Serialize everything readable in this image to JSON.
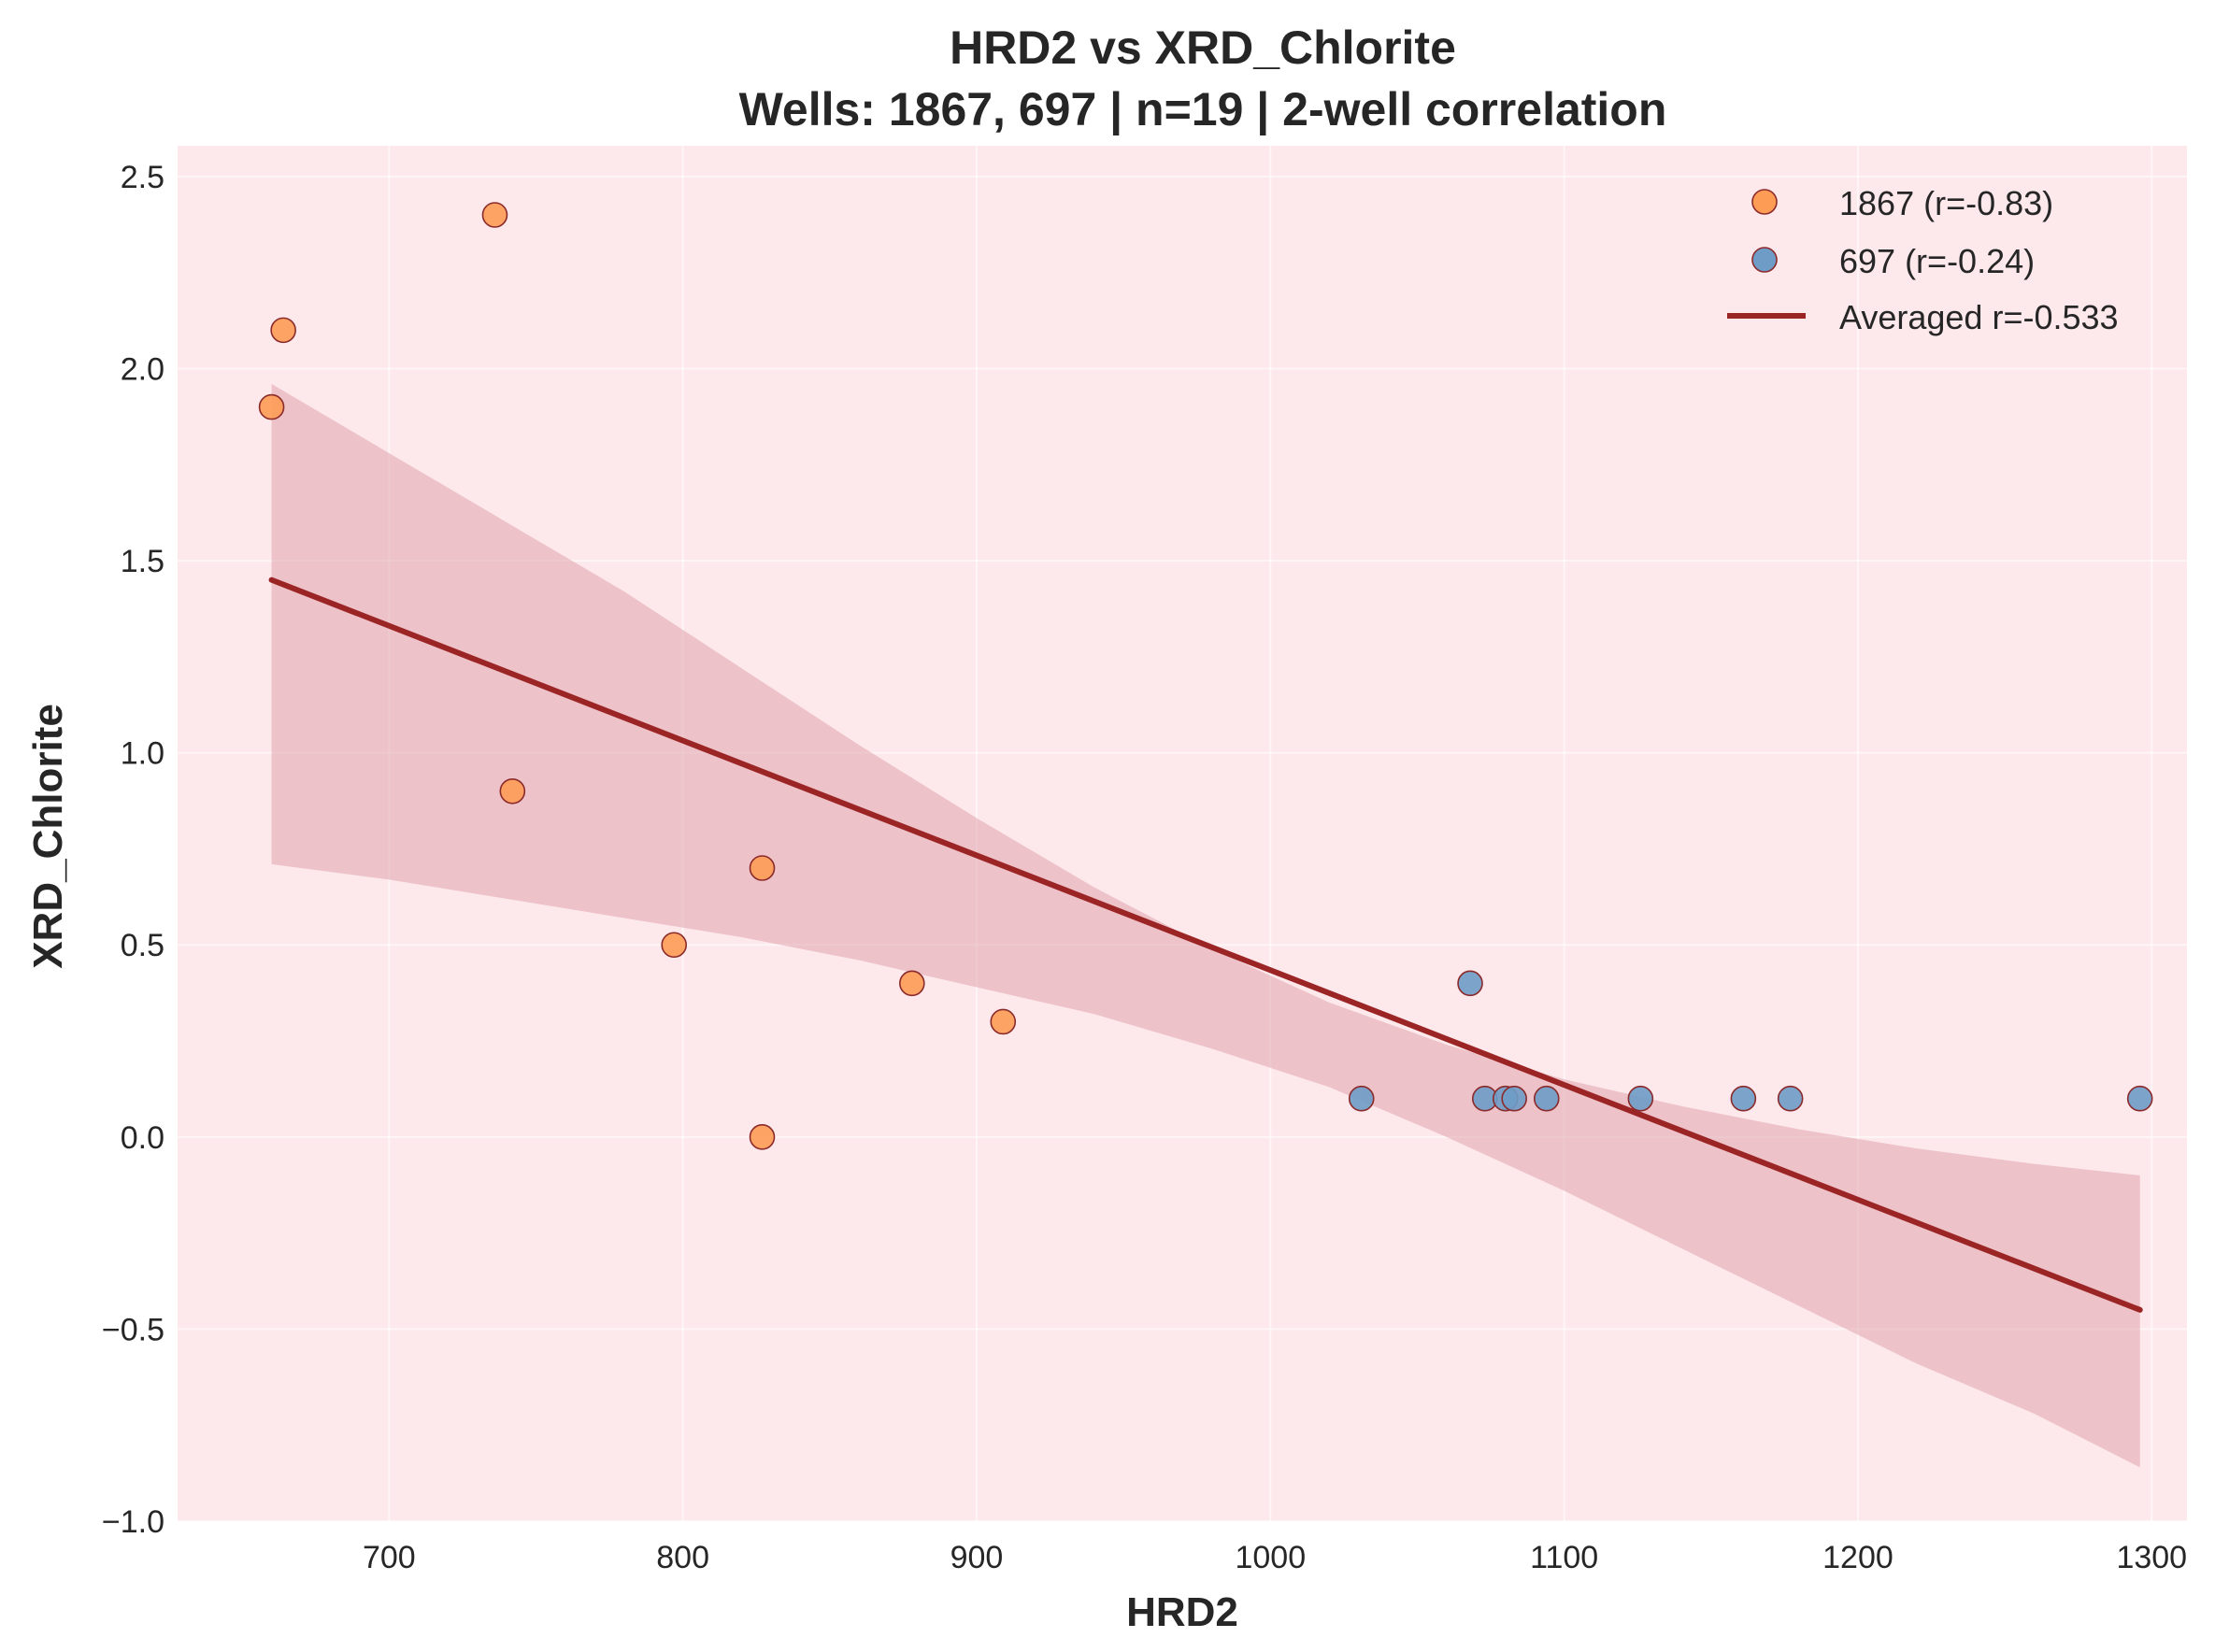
{
  "chart_data": {
    "type": "scatter",
    "title": "HRD2 vs XRD_Chlorite",
    "subtitle": "Wells: 1867, 697 | n=19 | 2-well correlation",
    "xlabel": "HRD2",
    "ylabel": "XRD_Chlorite",
    "xlim": [
      628,
      1312
    ],
    "ylim": [
      -1.0,
      2.58
    ],
    "x_ticks": [
      700,
      800,
      900,
      1000,
      1100,
      1200,
      1300
    ],
    "y_ticks": [
      -1.0,
      -0.5,
      0.0,
      0.5,
      1.0,
      1.5,
      2.0,
      2.5
    ],
    "x_tick_labels": [
      "700",
      "800",
      "900",
      "1000",
      "1100",
      "1200",
      "1300"
    ],
    "y_tick_labels": [
      "−1.0",
      "−0.5",
      "0.0",
      "0.5",
      "1.0",
      "1.5",
      "2.0",
      "2.5"
    ],
    "grid": true,
    "legend_position": "top-right",
    "colors": {
      "plot_background": "#fde8ec",
      "series_1867": "#fd9c55",
      "series_697": "#6e9cc6",
      "marker_edge": "#8b2a2a",
      "fit_line": "#9b2425",
      "confidence_band": "#d9949e"
    },
    "series": [
      {
        "name": "1867 (r=-0.83)",
        "points": [
          {
            "x": 660,
            "y": 1.9
          },
          {
            "x": 664,
            "y": 2.1
          },
          {
            "x": 736,
            "y": 2.4
          },
          {
            "x": 742,
            "y": 0.9
          },
          {
            "x": 797,
            "y": 0.5
          },
          {
            "x": 827,
            "y": 0.7
          },
          {
            "x": 827,
            "y": 0.0
          },
          {
            "x": 878,
            "y": 0.4
          },
          {
            "x": 909,
            "y": 0.3
          }
        ]
      },
      {
        "name": "697 (r=-0.24)",
        "points": [
          {
            "x": 1031,
            "y": 0.1
          },
          {
            "x": 1068,
            "y": 0.4
          },
          {
            "x": 1073,
            "y": 0.1
          },
          {
            "x": 1080,
            "y": 0.1
          },
          {
            "x": 1083,
            "y": 0.1
          },
          {
            "x": 1094,
            "y": 0.1
          },
          {
            "x": 1126,
            "y": 0.1
          },
          {
            "x": 1161,
            "y": 0.1
          },
          {
            "x": 1177,
            "y": 0.1
          },
          {
            "x": 1296,
            "y": 0.1
          }
        ]
      }
    ],
    "fit_line": {
      "name": "Averaged r=-0.533",
      "points": [
        {
          "x": 660,
          "y": 1.45
        },
        {
          "x": 1296,
          "y": -0.45
        }
      ]
    },
    "confidence_band": {
      "upper": [
        {
          "x": 660,
          "y": 1.96
        },
        {
          "x": 680,
          "y": 1.87
        },
        {
          "x": 700,
          "y": 1.78
        },
        {
          "x": 740,
          "y": 1.6
        },
        {
          "x": 780,
          "y": 1.42
        },
        {
          "x": 820,
          "y": 1.22
        },
        {
          "x": 860,
          "y": 1.02
        },
        {
          "x": 900,
          "y": 0.83
        },
        {
          "x": 940,
          "y": 0.65
        },
        {
          "x": 980,
          "y": 0.49
        },
        {
          "x": 1020,
          "y": 0.35
        },
        {
          "x": 1060,
          "y": 0.24
        },
        {
          "x": 1100,
          "y": 0.15
        },
        {
          "x": 1140,
          "y": 0.08
        },
        {
          "x": 1180,
          "y": 0.02
        },
        {
          "x": 1220,
          "y": -0.03
        },
        {
          "x": 1260,
          "y": -0.07
        },
        {
          "x": 1296,
          "y": -0.1
        }
      ],
      "lower": [
        {
          "x": 660,
          "y": 0.71
        },
        {
          "x": 700,
          "y": 0.67
        },
        {
          "x": 740,
          "y": 0.62
        },
        {
          "x": 780,
          "y": 0.57
        },
        {
          "x": 820,
          "y": 0.52
        },
        {
          "x": 860,
          "y": 0.46
        },
        {
          "x": 900,
          "y": 0.39
        },
        {
          "x": 940,
          "y": 0.32
        },
        {
          "x": 980,
          "y": 0.23
        },
        {
          "x": 1020,
          "y": 0.13
        },
        {
          "x": 1060,
          "y": 0.0
        },
        {
          "x": 1100,
          "y": -0.14
        },
        {
          "x": 1140,
          "y": -0.29
        },
        {
          "x": 1180,
          "y": -0.44
        },
        {
          "x": 1220,
          "y": -0.59
        },
        {
          "x": 1260,
          "y": -0.72
        },
        {
          "x": 1296,
          "y": -0.86
        }
      ]
    }
  }
}
